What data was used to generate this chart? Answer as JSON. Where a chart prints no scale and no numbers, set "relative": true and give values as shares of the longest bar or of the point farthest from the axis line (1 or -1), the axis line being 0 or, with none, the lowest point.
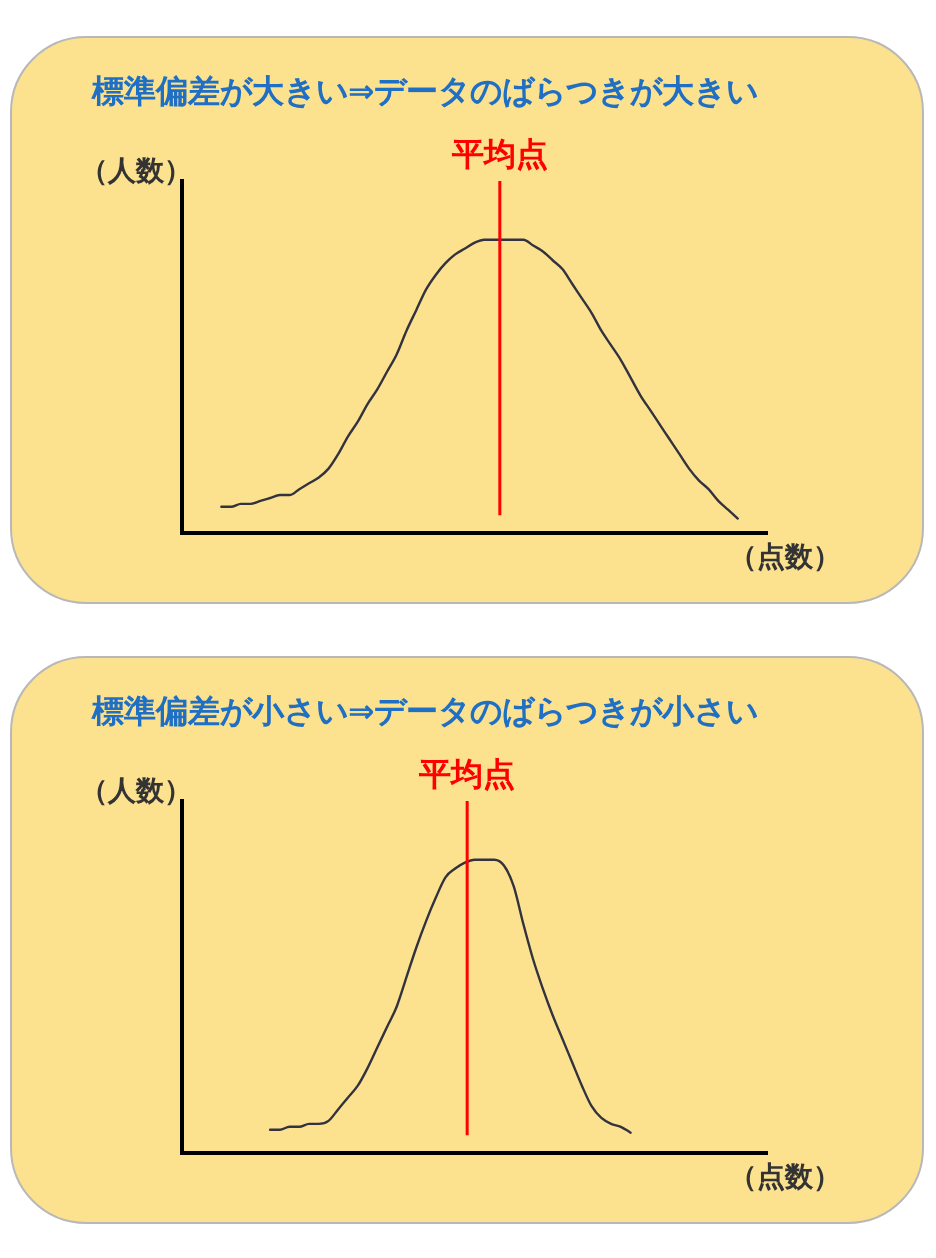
{
  "chart_data": [
    {
      "type": "line",
      "title": "標準偏差が大きい⇒データのばらつきが大きい",
      "xlabel": "（点数）",
      "ylabel": "（人数）",
      "relative": true,
      "categories": [
        null,
        null,
        null,
        null,
        null,
        null,
        null,
        null,
        null,
        null,
        null,
        null,
        null,
        null,
        null,
        null,
        null,
        null,
        null,
        null,
        null,
        null,
        null,
        null,
        null,
        null,
        null,
        null,
        null,
        null,
        null,
        null,
        null,
        null,
        null,
        null,
        null,
        null,
        null,
        null,
        null,
        null,
        null,
        null,
        null,
        null,
        null,
        null,
        null,
        null,
        null,
        null,
        null,
        null,
        null,
        null,
        null,
        null,
        null,
        null,
        null
      ],
      "series": [
        {
          "color": "#333340",
          "values": [
            null,
            null,
            null,
            null,
            0.09,
            0.09,
            0.1,
            0.1,
            0.11,
            0.12,
            0.13,
            0.13,
            0.15,
            0.17,
            0.19,
            0.22,
            0.27,
            0.33,
            0.38,
            0.44,
            0.49,
            0.55,
            0.61,
            0.69,
            0.76,
            0.83,
            0.88,
            0.92,
            0.95,
            0.97,
            0.99,
            1,
            1,
            1,
            1,
            1,
            0.98,
            0.96,
            0.93,
            0.9,
            0.85,
            0.8,
            0.75,
            0.69,
            0.64,
            0.59,
            0.53,
            0.47,
            0.42,
            0.37,
            0.32,
            0.27,
            0.22,
            0.18,
            0.15,
            0.11,
            0.08,
            0.05,
            null,
            null,
            null
          ]
        }
      ],
      "annotations": [
        "平均点"
      ]
    },
    {
      "type": "line",
      "title": "標準偏差が小さい⇒データのばらつきが小さい",
      "xlabel": "（点数）",
      "ylabel": "（人数）",
      "relative": true,
      "categories": [
        null,
        null,
        null,
        null,
        null,
        null,
        null,
        null,
        null,
        null,
        null,
        null,
        null,
        null,
        null,
        null,
        null,
        null,
        null,
        null,
        null,
        null,
        null,
        null,
        null,
        null,
        null,
        null,
        null,
        null,
        null,
        null,
        null,
        null,
        null,
        null,
        null,
        null,
        null,
        null,
        null,
        null,
        null,
        null,
        null,
        null,
        null,
        null,
        null,
        null,
        null,
        null,
        null,
        null,
        null,
        null,
        null,
        null,
        null,
        null,
        null
      ],
      "series": [
        {
          "color": "#333340",
          "values": [
            null,
            null,
            null,
            null,
            null,
            null,
            null,
            null,
            null,
            0.08,
            0.08,
            0.09,
            0.09,
            0.1,
            0.1,
            0.11,
            0.15,
            0.19,
            0.23,
            0.29,
            0.36,
            0.43,
            0.5,
            0.6,
            0.7,
            0.79,
            0.87,
            0.94,
            0.97,
            0.99,
            1,
            1,
            1,
            0.98,
            0.91,
            0.78,
            0.66,
            0.56,
            0.47,
            0.39,
            0.31,
            0.23,
            0.16,
            0.12,
            0.1,
            0.09,
            0.07,
            null,
            null,
            null,
            null,
            null,
            null,
            null,
            null,
            null,
            null,
            null,
            null,
            null,
            null
          ]
        }
      ],
      "annotations": [
        "平均点"
      ]
    }
  ]
}
